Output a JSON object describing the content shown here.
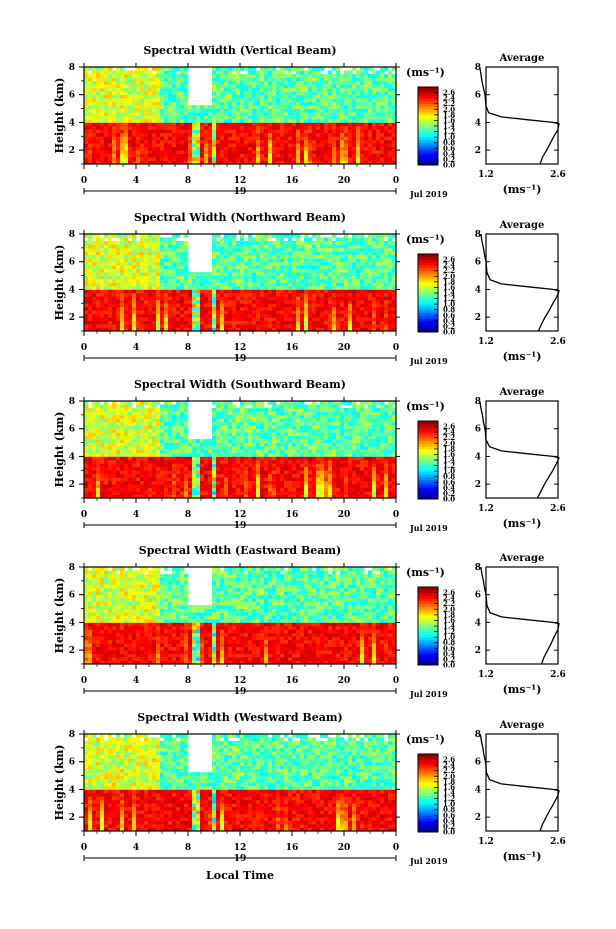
{
  "figure": {
    "bottom_label": "Local Time"
  },
  "chart_data": [
    {
      "type": "heatmap",
      "title": "Spectral Width (Vertical Beam)",
      "ylabel": "Height (km)",
      "xticks": [
        "0",
        "4",
        "8",
        "12",
        "16",
        "20",
        "0"
      ],
      "yticks": [
        "2",
        "4",
        "6",
        "8"
      ],
      "ylim": [
        1,
        8
      ],
      "xlim": [
        0,
        24
      ],
      "date_label": "19",
      "month_label": "Jul 2019",
      "colorbar": {
        "unit": "(ms⁻¹)",
        "ticks": [
          "2.6",
          "2.4",
          "2.2",
          "2.0",
          "1.8",
          "1.6",
          "1.4",
          "1.2",
          "1.0",
          "0.8",
          "0.6",
          "0.4",
          "0.2",
          "0.0"
        ],
        "range": [
          0,
          2.8
        ]
      },
      "description_values": {
        "lower_layer_top_km": 4.0,
        "lower_layer_width": 2.6,
        "upper_layer_width": 1.3
      },
      "average": {
        "title": "Average",
        "xlabel": "(ms⁻¹)",
        "xticks": [
          "1.2",
          "2.6"
        ],
        "yticks": [
          "2",
          "4",
          "6",
          "8"
        ],
        "profile": [
          [
            2.25,
            1.0
          ],
          [
            2.3,
            1.5
          ],
          [
            2.38,
            2.0
          ],
          [
            2.45,
            2.5
          ],
          [
            2.52,
            3.0
          ],
          [
            2.6,
            3.5
          ],
          [
            2.62,
            3.9
          ],
          [
            2.5,
            4.0
          ],
          [
            2.0,
            4.2
          ],
          [
            1.5,
            4.4
          ],
          [
            1.25,
            4.7
          ],
          [
            1.2,
            5.2
          ],
          [
            1.18,
            6.0
          ],
          [
            1.15,
            6.5
          ],
          [
            1.12,
            7.0
          ],
          [
            1.1,
            7.5
          ],
          [
            1.08,
            8.0
          ]
        ]
      }
    },
    {
      "type": "heatmap",
      "title": "Spectral Width (Northward Beam)",
      "ylabel": "Height (km)",
      "xticks": [
        "0",
        "4",
        "8",
        "12",
        "16",
        "20",
        "0"
      ],
      "yticks": [
        "2",
        "4",
        "6",
        "8"
      ],
      "ylim": [
        1,
        8
      ],
      "xlim": [
        0,
        24
      ],
      "date_label": "19",
      "month_label": "Jul 2019",
      "colorbar": {
        "unit": "(ms⁻¹)",
        "ticks": [
          "2.6",
          "2.4",
          "2.2",
          "2.0",
          "1.8",
          "1.6",
          "1.4",
          "1.2",
          "1.0",
          "0.8",
          "0.6",
          "0.4",
          "0.2",
          "0.0"
        ],
        "range": [
          0,
          2.8
        ]
      },
      "description_values": {
        "lower_layer_top_km": 4.0,
        "lower_layer_width": 2.6,
        "upper_layer_width": 1.3
      },
      "average": {
        "title": "Average",
        "xlabel": "(ms⁻¹)",
        "xticks": [
          "1.2",
          "2.6"
        ],
        "yticks": [
          "2",
          "4",
          "6",
          "8"
        ],
        "profile": [
          [
            2.22,
            1.0
          ],
          [
            2.28,
            1.5
          ],
          [
            2.35,
            2.0
          ],
          [
            2.43,
            2.5
          ],
          [
            2.5,
            3.0
          ],
          [
            2.58,
            3.5
          ],
          [
            2.62,
            3.9
          ],
          [
            2.5,
            4.0
          ],
          [
            2.0,
            4.2
          ],
          [
            1.5,
            4.4
          ],
          [
            1.28,
            4.7
          ],
          [
            1.22,
            5.2
          ],
          [
            1.2,
            6.0
          ],
          [
            1.17,
            6.5
          ],
          [
            1.15,
            7.0
          ],
          [
            1.12,
            7.5
          ],
          [
            1.1,
            8.0
          ]
        ]
      }
    },
    {
      "type": "heatmap",
      "title": "Spectral Width (Southward Beam)",
      "ylabel": "Height (km)",
      "xticks": [
        "0",
        "4",
        "8",
        "12",
        "16",
        "20",
        "0"
      ],
      "yticks": [
        "2",
        "4",
        "6",
        "8"
      ],
      "ylim": [
        1,
        8
      ],
      "xlim": [
        0,
        24
      ],
      "date_label": "19",
      "month_label": "Jul 2019",
      "colorbar": {
        "unit": "(ms⁻¹)",
        "ticks": [
          "2.6",
          "2.4",
          "2.2",
          "2.0",
          "1.8",
          "1.6",
          "1.4",
          "1.2",
          "1.0",
          "0.8",
          "0.6",
          "0.4",
          "0.2",
          "0.0"
        ],
        "range": [
          0,
          2.8
        ]
      },
      "description_values": {
        "lower_layer_top_km": 4.0,
        "lower_layer_width": 2.6,
        "upper_layer_width": 1.3
      },
      "average": {
        "title": "Average",
        "xlabel": "(ms⁻¹)",
        "xticks": [
          "1.2",
          "2.6"
        ],
        "yticks": [
          "2",
          "4",
          "6",
          "8"
        ],
        "profile": [
          [
            2.2,
            1.0
          ],
          [
            2.27,
            1.5
          ],
          [
            2.34,
            2.0
          ],
          [
            2.42,
            2.5
          ],
          [
            2.5,
            3.0
          ],
          [
            2.57,
            3.5
          ],
          [
            2.62,
            3.9
          ],
          [
            2.5,
            4.0
          ],
          [
            2.0,
            4.2
          ],
          [
            1.5,
            4.4
          ],
          [
            1.27,
            4.7
          ],
          [
            1.2,
            5.2
          ],
          [
            1.18,
            6.0
          ],
          [
            1.15,
            6.5
          ],
          [
            1.13,
            7.0
          ],
          [
            1.1,
            7.5
          ],
          [
            1.08,
            8.0
          ]
        ]
      }
    },
    {
      "type": "heatmap",
      "title": "Spectral Width (Eastward Beam)",
      "ylabel": "Height (km)",
      "xticks": [
        "0",
        "4",
        "8",
        "12",
        "16",
        "20",
        "0"
      ],
      "yticks": [
        "2",
        "4",
        "6",
        "8"
      ],
      "ylim": [
        1,
        8
      ],
      "xlim": [
        0,
        24
      ],
      "date_label": "19",
      "month_label": "Jul 2019",
      "colorbar": {
        "unit": "(ms⁻¹)",
        "ticks": [
          "2.6",
          "2.4",
          "2.2",
          "2.0",
          "1.8",
          "1.6",
          "1.4",
          "1.2",
          "1.0",
          "0.8",
          "0.6",
          "0.4",
          "0.2",
          "0.0"
        ],
        "range": [
          0,
          2.8
        ]
      },
      "description_values": {
        "lower_layer_top_km": 4.0,
        "lower_layer_width": 2.6,
        "upper_layer_width": 1.3
      },
      "average": {
        "title": "Average",
        "xlabel": "(ms⁻¹)",
        "xticks": [
          "1.2",
          "2.6"
        ],
        "yticks": [
          "2",
          "4",
          "6",
          "8"
        ],
        "profile": [
          [
            2.28,
            1.0
          ],
          [
            2.33,
            1.5
          ],
          [
            2.4,
            2.0
          ],
          [
            2.47,
            2.5
          ],
          [
            2.53,
            3.0
          ],
          [
            2.6,
            3.5
          ],
          [
            2.62,
            3.9
          ],
          [
            2.5,
            4.0
          ],
          [
            2.0,
            4.2
          ],
          [
            1.5,
            4.4
          ],
          [
            1.28,
            4.7
          ],
          [
            1.22,
            5.2
          ],
          [
            1.2,
            6.0
          ],
          [
            1.17,
            6.5
          ],
          [
            1.15,
            7.0
          ],
          [
            1.12,
            7.5
          ],
          [
            1.1,
            8.0
          ]
        ]
      }
    },
    {
      "type": "heatmap",
      "title": "Spectral Width (Westward Beam)",
      "ylabel": "Height (km)",
      "xticks": [
        "0",
        "4",
        "8",
        "12",
        "16",
        "20",
        "0"
      ],
      "yticks": [
        "2",
        "4",
        "6",
        "8"
      ],
      "ylim": [
        1,
        8
      ],
      "xlim": [
        0,
        24
      ],
      "date_label": "19",
      "month_label": "Jul 2019",
      "colorbar": {
        "unit": "(ms⁻¹)",
        "ticks": [
          "2.6",
          "2.4",
          "2.2",
          "2.0",
          "1.8",
          "1.6",
          "1.4",
          "1.2",
          "1.0",
          "0.8",
          "0.6",
          "0.4",
          "0.2",
          "0.0"
        ],
        "range": [
          0,
          2.8
        ]
      },
      "description_values": {
        "lower_layer_top_km": 4.0,
        "lower_layer_width": 2.6,
        "upper_layer_width": 1.3
      },
      "average": {
        "title": "Average",
        "xlabel": "(ms⁻¹)",
        "xticks": [
          "1.2",
          "2.6"
        ],
        "yticks": [
          "2",
          "4",
          "6",
          "8"
        ],
        "profile": [
          [
            2.25,
            1.0
          ],
          [
            2.3,
            1.5
          ],
          [
            2.37,
            2.0
          ],
          [
            2.44,
            2.5
          ],
          [
            2.52,
            3.0
          ],
          [
            2.59,
            3.5
          ],
          [
            2.62,
            3.9
          ],
          [
            2.5,
            4.0
          ],
          [
            2.0,
            4.2
          ],
          [
            1.5,
            4.4
          ],
          [
            1.27,
            4.7
          ],
          [
            1.21,
            5.2
          ],
          [
            1.19,
            6.0
          ],
          [
            1.16,
            6.5
          ],
          [
            1.14,
            7.0
          ],
          [
            1.11,
            7.5
          ],
          [
            1.09,
            8.0
          ]
        ]
      }
    }
  ]
}
